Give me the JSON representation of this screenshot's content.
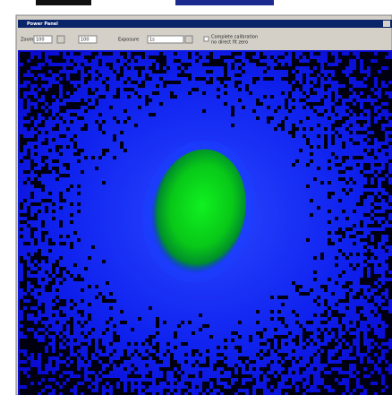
{
  "window": {
    "title": "Power Panel"
  },
  "toolbar": {
    "zoom_label": "Zoom",
    "zoom_value": "100",
    "zoom_value_2": "100",
    "exposure_label": "Exposure",
    "exposure_value": "1s",
    "checkbox_label": "Complete calibration",
    "checkbox_sublabel": "no direct fit zero"
  }
}
